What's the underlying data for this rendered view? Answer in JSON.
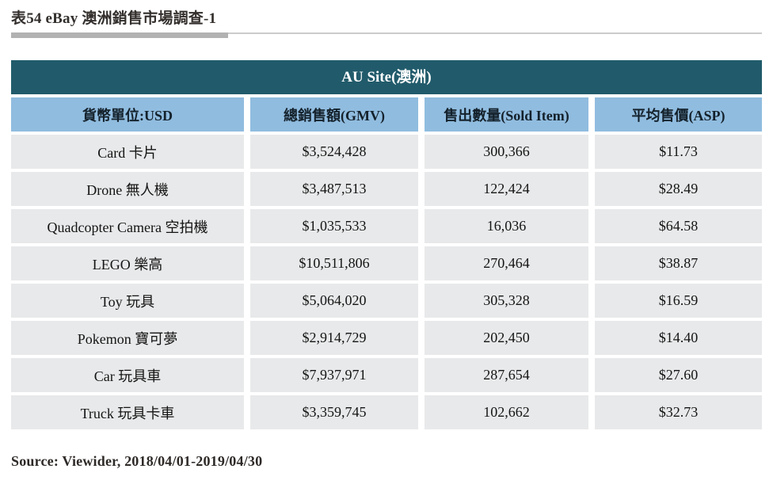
{
  "page": {
    "title": "表54 eBay 澳洲銷售市場調查-1",
    "source": "Source: Viewider, 2018/04/01-2019/04/30"
  },
  "colors": {
    "banner_teal": "#215b6b",
    "header_blue": "#90bcdf",
    "row_gray": "#e8e9ea",
    "rule_dark": "#b2b2b2",
    "rule_light": "#cbcbcb"
  },
  "table": {
    "banner": "AU Site(澳洲)",
    "columns": [
      "貨幣單位:USD",
      "總銷售額(GMV)",
      "售出數量(Sold Item)",
      "平均售價(ASP)"
    ],
    "rows": [
      {
        "category": "Card 卡片",
        "gmv": "$3,524,428",
        "sold": "300,366",
        "asp": "$11.73"
      },
      {
        "category": "Drone 無人機",
        "gmv": "$3,487,513",
        "sold": "122,424",
        "asp": "$28.49"
      },
      {
        "category": "Quadcopter Camera 空拍機",
        "gmv": "$1,035,533",
        "sold": "16,036",
        "asp": "$64.58"
      },
      {
        "category": "LEGO 樂高",
        "gmv": "$10,511,806",
        "sold": "270,464",
        "asp": "$38.87"
      },
      {
        "category": "Toy 玩具",
        "gmv": "$5,064,020",
        "sold": "305,328",
        "asp": "$16.59"
      },
      {
        "category": "Pokemon 寶可夢",
        "gmv": "$2,914,729",
        "sold": "202,450",
        "asp": "$14.40"
      },
      {
        "category": "Car 玩具車",
        "gmv": "$7,937,971",
        "sold": "287,654",
        "asp": "$27.60"
      },
      {
        "category": "Truck 玩具卡車",
        "gmv": "$3,359,745",
        "sold": "102,662",
        "asp": "$32.73"
      }
    ]
  }
}
